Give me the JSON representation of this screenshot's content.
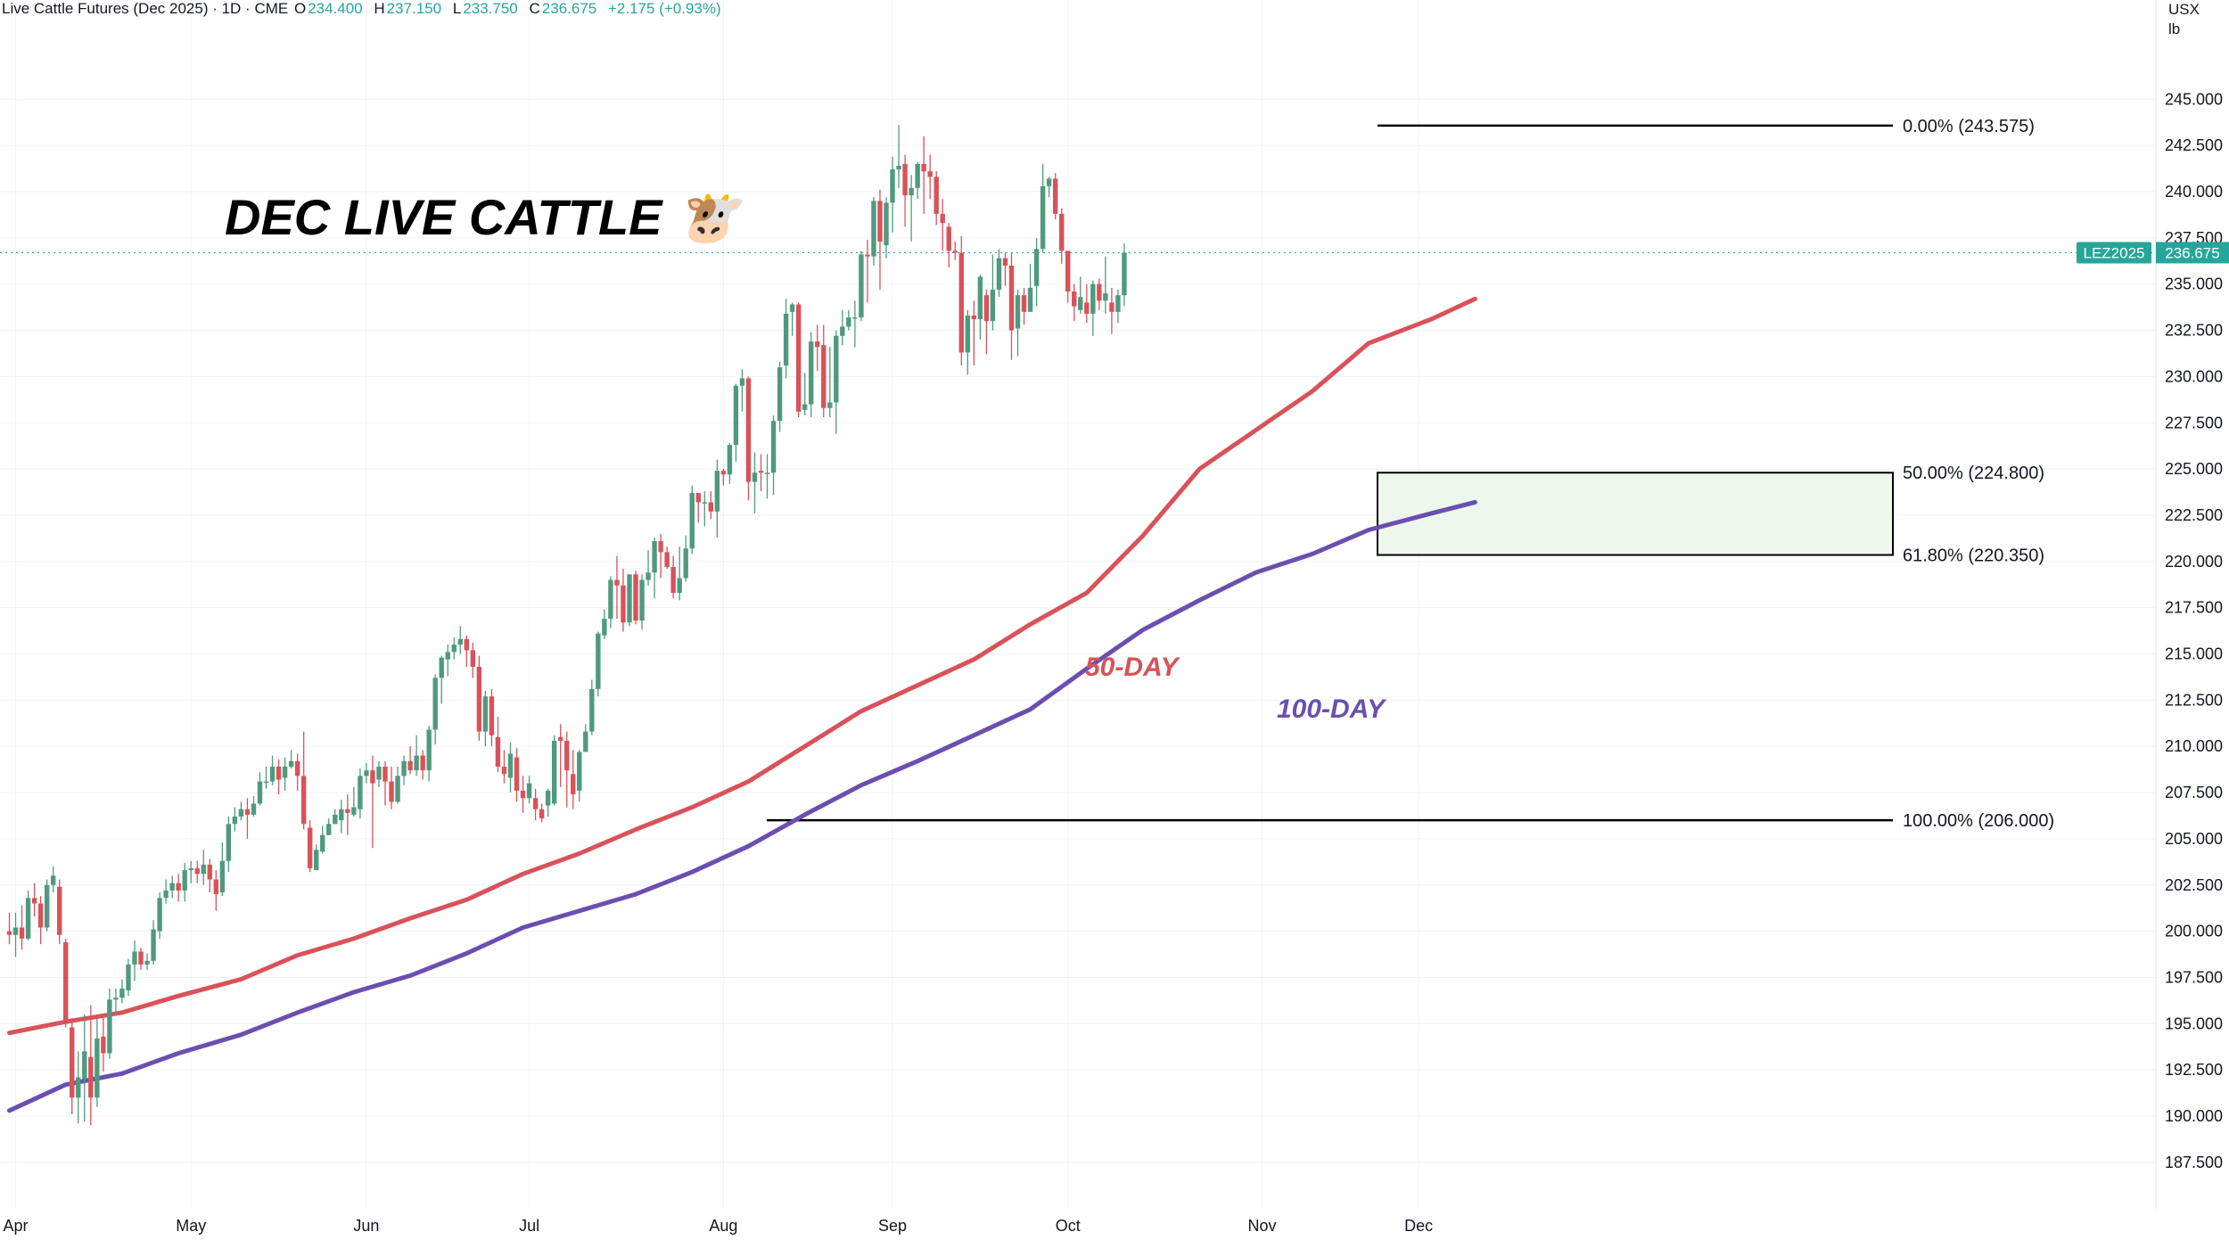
{
  "header": {
    "symbol": "Live Cattle Futures (Dec 2025) · 1D · CME",
    "open_label": "O",
    "open": "234.400",
    "high_label": "H",
    "high": "237.150",
    "low_label": "L",
    "low": "233.750",
    "close_label": "C",
    "close": "236.675",
    "change": "+2.175 (+0.93%)"
  },
  "currency": {
    "unit": "USX",
    "sub": "lb"
  },
  "price_tag": {
    "ticker": "LEZ2025",
    "price": "236.675"
  },
  "colors": {
    "up": "#4f9a7e",
    "down": "#d9525a",
    "ma50": "#d9525a",
    "ma100": "#6a4fb0",
    "zone": "#eef7ec"
  },
  "chart_data": {
    "type": "candlestick",
    "title": "DEC LIVE CATTLE 🐮",
    "y_axis": {
      "min": 185.6,
      "max": 248.6,
      "ticks": [
        "187.500",
        "190.000",
        "192.500",
        "195.000",
        "197.500",
        "200.000",
        "202.500",
        "205.000",
        "207.500",
        "210.000",
        "212.500",
        "215.000",
        "217.500",
        "220.000",
        "222.500",
        "225.000",
        "227.500",
        "230.000",
        "232.500",
        "235.000",
        "237.500",
        "240.000",
        "242.500",
        "245.000"
      ]
    },
    "x_axis": {
      "labels": [
        "Apr",
        "May",
        "Jun",
        "Jul",
        "Aug",
        "Sep",
        "Oct",
        "Nov",
        "Dec"
      ]
    },
    "candles": [
      [
        200.0,
        199.8,
        201.0,
        199.3
      ],
      [
        199.8,
        200.2,
        201.0,
        198.6
      ],
      [
        200.2,
        199.6,
        201.4,
        199.0
      ],
      [
        199.6,
        201.8,
        202.2,
        199.5
      ],
      [
        201.8,
        201.5,
        202.6,
        200.8
      ],
      [
        201.5,
        200.2,
        201.9,
        199.3
      ],
      [
        200.2,
        202.5,
        202.8,
        200.0
      ],
      [
        202.5,
        203.0,
        203.5,
        202.1
      ],
      [
        202.4,
        199.8,
        202.8,
        199.3
      ],
      [
        199.4,
        195.0,
        199.6,
        194.8
      ],
      [
        194.8,
        191.0,
        195.3,
        190.1
      ],
      [
        191.0,
        192.1,
        193.5,
        189.6
      ],
      [
        192.0,
        193.5,
        195.5,
        189.7
      ],
      [
        193.2,
        191.0,
        196.0,
        189.5
      ],
      [
        191.0,
        194.2,
        195.3,
        190.5
      ],
      [
        194.3,
        193.4,
        195.4,
        192.4
      ],
      [
        193.4,
        196.3,
        196.9,
        193.1
      ],
      [
        196.3,
        196.4,
        196.9,
        195.5
      ],
      [
        196.4,
        196.9,
        197.4,
        196.1
      ],
      [
        196.8,
        198.2,
        198.5,
        196.5
      ],
      [
        198.2,
        198.9,
        199.5,
        197.3
      ],
      [
        198.9,
        198.2,
        199.1,
        197.9
      ],
      [
        198.2,
        198.4,
        198.8,
        197.9
      ],
      [
        198.4,
        200.1,
        200.6,
        198.2
      ],
      [
        200.0,
        201.8,
        202.1,
        199.6
      ],
      [
        201.8,
        202.2,
        202.8,
        201.5
      ],
      [
        202.2,
        202.6,
        203.0,
        201.8
      ],
      [
        202.6,
        202.2,
        203.1,
        201.6
      ],
      [
        202.2,
        203.3,
        203.7,
        201.6
      ],
      [
        203.3,
        203.4,
        203.8,
        202.6
      ],
      [
        203.4,
        203.1,
        203.8,
        202.6
      ],
      [
        203.1,
        203.6,
        204.4,
        202.5
      ],
      [
        203.6,
        202.8,
        203.9,
        202.1
      ],
      [
        202.8,
        202.0,
        203.3,
        201.1
      ],
      [
        202.1,
        203.8,
        204.8,
        201.9
      ],
      [
        203.8,
        205.8,
        206.2,
        203.2
      ],
      [
        205.8,
        206.2,
        206.7,
        205.4
      ],
      [
        206.2,
        206.6,
        207.0,
        206.0
      ],
      [
        206.6,
        206.3,
        207.2,
        205.0
      ],
      [
        206.3,
        206.9,
        207.3,
        206.2
      ],
      [
        206.9,
        208.1,
        208.6,
        206.8
      ],
      [
        208.1,
        208.1,
        208.9,
        207.7
      ],
      [
        208.1,
        208.9,
        209.5,
        207.9
      ],
      [
        208.9,
        208.2,
        209.3,
        207.4
      ],
      [
        208.3,
        208.9,
        209.4,
        207.6
      ],
      [
        208.9,
        209.2,
        209.8,
        208.8
      ],
      [
        209.2,
        208.4,
        209.6,
        207.6
      ],
      [
        208.4,
        205.8,
        210.8,
        205.5
      ],
      [
        205.6,
        203.4,
        206.0,
        203.2
      ],
      [
        203.3,
        204.4,
        204.7,
        203.6
      ],
      [
        204.3,
        205.2,
        205.7,
        204.2
      ],
      [
        205.2,
        205.8,
        206.1,
        205.2
      ],
      [
        205.8,
        206.3,
        206.6,
        205.8
      ],
      [
        206.0,
        206.6,
        207.1,
        205.3
      ],
      [
        206.6,
        206.4,
        207.4,
        205.2
      ],
      [
        206.3,
        206.7,
        207.8,
        206.2
      ],
      [
        206.6,
        208.4,
        208.8,
        206.1
      ],
      [
        208.4,
        208.7,
        209.1,
        208.0
      ],
      [
        208.7,
        208.0,
        209.5,
        204.5
      ],
      [
        208.2,
        208.9,
        209.2,
        207.8
      ],
      [
        208.9,
        208.1,
        209.2,
        206.8
      ],
      [
        208.1,
        207.0,
        208.9,
        206.6
      ],
      [
        207.0,
        208.4,
        208.9,
        206.9
      ],
      [
        208.4,
        209.2,
        209.5,
        207.9
      ],
      [
        209.2,
        208.7,
        210.0,
        208.5
      ],
      [
        208.7,
        209.5,
        210.6,
        208.4
      ],
      [
        209.5,
        208.7,
        209.8,
        208.2
      ],
      [
        208.7,
        210.9,
        211.1,
        208.1
      ],
      [
        210.9,
        213.7,
        213.9,
        210.1
      ],
      [
        213.7,
        214.8,
        214.9,
        212.3
      ],
      [
        214.7,
        215.1,
        215.5,
        213.8
      ],
      [
        215.1,
        215.5,
        215.9,
        214.7
      ],
      [
        215.5,
        215.8,
        216.5,
        215.0
      ],
      [
        215.8,
        215.2,
        216.0,
        214.3
      ],
      [
        215.2,
        214.3,
        215.6,
        213.7
      ],
      [
        214.3,
        210.8,
        214.9,
        210.3
      ],
      [
        210.8,
        212.7,
        213.0,
        210.0
      ],
      [
        212.7,
        210.6,
        213.1,
        210.0
      ],
      [
        210.5,
        208.9,
        211.6,
        208.6
      ],
      [
        208.9,
        208.5,
        209.8,
        208.0
      ],
      [
        208.3,
        209.6,
        210.2,
        207.5
      ],
      [
        209.4,
        207.6,
        209.9,
        207.0
      ],
      [
        207.6,
        207.2,
        208.4,
        206.4
      ],
      [
        207.2,
        208.0,
        208.4,
        206.9
      ],
      [
        207.2,
        206.6,
        207.7,
        206.0
      ],
      [
        206.6,
        206.1,
        206.9,
        205.9
      ],
      [
        206.8,
        207.6,
        207.7,
        206.2
      ],
      [
        206.9,
        210.3,
        210.6,
        206.8
      ],
      [
        210.5,
        210.3,
        211.2,
        207.8
      ],
      [
        210.3,
        208.7,
        210.8,
        206.7
      ],
      [
        208.5,
        207.4,
        209.8,
        206.6
      ],
      [
        207.6,
        209.7,
        209.8,
        207.0
      ],
      [
        209.7,
        210.8,
        211.2,
        209.7
      ],
      [
        210.8,
        213.1,
        213.6,
        210.6
      ],
      [
        213.1,
        216.1,
        216.2,
        212.7
      ],
      [
        216.0,
        216.9,
        217.4,
        215.8
      ],
      [
        216.9,
        219.0,
        219.2,
        216.4
      ],
      [
        219.0,
        218.7,
        220.3,
        216.9
      ],
      [
        218.7,
        216.7,
        219.6,
        216.2
      ],
      [
        216.7,
        219.3,
        219.3,
        216.5
      ],
      [
        219.3,
        216.8,
        219.5,
        216.6
      ],
      [
        216.8,
        219.0,
        219.3,
        216.3
      ],
      [
        219.0,
        219.4,
        220.6,
        218.7
      ],
      [
        219.4,
        221.1,
        221.3,
        218.0
      ],
      [
        221.1,
        220.5,
        221.5,
        219.1
      ],
      [
        220.5,
        219.7,
        220.8,
        219.6
      ],
      [
        219.7,
        218.3,
        220.3,
        218.0
      ],
      [
        218.3,
        219.1,
        220.8,
        217.9
      ],
      [
        219.1,
        220.7,
        221.4,
        218.9
      ],
      [
        220.7,
        223.7,
        224.1,
        220.4
      ],
      [
        223.7,
        223.2,
        223.7,
        222.1
      ],
      [
        223.2,
        223.2,
        223.8,
        221.9
      ],
      [
        223.2,
        222.7,
        223.8,
        222.3
      ],
      [
        222.7,
        224.9,
        225.5,
        221.3
      ],
      [
        224.9,
        224.7,
        225.0,
        224.1
      ],
      [
        224.7,
        226.3,
        226.4,
        224.2
      ],
      [
        226.3,
        229.5,
        229.6,
        225.4
      ],
      [
        229.5,
        229.9,
        230.4,
        228.1
      ],
      [
        229.9,
        224.3,
        230.0,
        223.3
      ],
      [
        224.3,
        224.8,
        225.9,
        222.6
      ],
      [
        224.9,
        224.8,
        225.8,
        223.8
      ],
      [
        224.8,
        224.8,
        225.8,
        223.4
      ],
      [
        224.8,
        227.6,
        227.9,
        223.6
      ],
      [
        227.6,
        230.5,
        230.8,
        227.0
      ],
      [
        230.6,
        233.4,
        234.2,
        229.9
      ],
      [
        233.5,
        233.9,
        234.0,
        232.2
      ],
      [
        233.9,
        228.1,
        234.0,
        227.8
      ],
      [
        228.2,
        228.5,
        230.2,
        227.9
      ],
      [
        228.5,
        231.9,
        232.4,
        227.8
      ],
      [
        231.9,
        231.6,
        232.8,
        230.3
      ],
      [
        231.7,
        228.3,
        232.8,
        227.8
      ],
      [
        228.3,
        228.6,
        231.6,
        227.8
      ],
      [
        228.6,
        232.2,
        232.5,
        226.9
      ],
      [
        232.2,
        232.7,
        233.6,
        231.7
      ],
      [
        232.7,
        233.2,
        233.6,
        232.5
      ],
      [
        233.2,
        233.2,
        234.1,
        231.6
      ],
      [
        233.2,
        236.6,
        236.8,
        233.0
      ],
      [
        236.6,
        236.5,
        237.4,
        234.0
      ],
      [
        236.5,
        239.5,
        239.7,
        236.0
      ],
      [
        239.5,
        237.3,
        240.1,
        234.7
      ],
      [
        237.1,
        239.4,
        239.7,
        236.4
      ],
      [
        239.4,
        241.2,
        241.9,
        237.8
      ],
      [
        241.2,
        241.4,
        243.6,
        240.2
      ],
      [
        241.5,
        239.8,
        242.0,
        238.1
      ],
      [
        239.8,
        240.2,
        240.9,
        237.3
      ],
      [
        240.2,
        241.5,
        241.6,
        239.6
      ],
      [
        241.5,
        241.1,
        243.0,
        238.8
      ],
      [
        241.1,
        240.8,
        242.0,
        239.6
      ],
      [
        240.8,
        238.8,
        241.1,
        238.2
      ],
      [
        238.8,
        238.3,
        239.6,
        236.8
      ],
      [
        238.1,
        236.8,
        238.3,
        235.9
      ],
      [
        236.8,
        236.7,
        237.3,
        236.3
      ],
      [
        236.7,
        231.3,
        237.6,
        230.6
      ],
      [
        231.3,
        233.3,
        233.6,
        230.1
      ],
      [
        233.3,
        233.1,
        234.1,
        230.6
      ],
      [
        233.1,
        235.4,
        235.5,
        232.0
      ],
      [
        234.4,
        233.0,
        234.7,
        231.2
      ],
      [
        233.0,
        234.7,
        236.6,
        232.5
      ],
      [
        234.7,
        236.4,
        236.9,
        234.3
      ],
      [
        236.4,
        236.0,
        236.7,
        234.9
      ],
      [
        236.0,
        232.5,
        236.7,
        230.9
      ],
      [
        232.6,
        234.4,
        234.7,
        231.1
      ],
      [
        234.4,
        233.5,
        234.8,
        232.8
      ],
      [
        233.5,
        234.8,
        236.1,
        233.6
      ],
      [
        234.9,
        236.9,
        237.5,
        233.8
      ],
      [
        236.9,
        240.3,
        241.5,
        236.7
      ],
      [
        240.3,
        240.7,
        240.8,
        239.7
      ],
      [
        240.7,
        238.8,
        241.0,
        238.5
      ],
      [
        238.8,
        236.8,
        239.1,
        236.1
      ],
      [
        236.8,
        234.6,
        236.8,
        234.0
      ],
      [
        234.6,
        233.8,
        235.0,
        233.0
      ],
      [
        233.6,
        234.3,
        235.4,
        233.4
      ],
      [
        234.0,
        233.4,
        235.0,
        232.9
      ],
      [
        233.4,
        235.0,
        235.2,
        232.2
      ],
      [
        235.0,
        234.1,
        235.3,
        233.6
      ],
      [
        234.1,
        234.5,
        236.5,
        233.4
      ],
      [
        234.0,
        233.5,
        234.8,
        232.3
      ],
      [
        233.5,
        234.4,
        234.7,
        232.9
      ],
      [
        234.4,
        236.7,
        237.2,
        233.8
      ]
    ],
    "ma50": [
      [
        0,
        194.5
      ],
      [
        9,
        195.1
      ],
      [
        18,
        195.6
      ],
      [
        27,
        196.5
      ],
      [
        37,
        197.4
      ],
      [
        46,
        198.7
      ],
      [
        55,
        199.6
      ],
      [
        64,
        200.7
      ],
      [
        73,
        201.7
      ],
      [
        82,
        203.1
      ],
      [
        91,
        204.2
      ],
      [
        100,
        205.5
      ],
      [
        109,
        206.7
      ],
      [
        118,
        208.1
      ],
      [
        127,
        210.0
      ],
      [
        136,
        211.9
      ],
      [
        145,
        213.3
      ],
      [
        154,
        214.7
      ],
      [
        163,
        216.6
      ],
      [
        172,
        218.3
      ],
      [
        181,
        221.4
      ],
      [
        190,
        225.0
      ],
      [
        199,
        227.1
      ],
      [
        208,
        229.2
      ],
      [
        217,
        231.8
      ],
      [
        227,
        233.1
      ],
      [
        234,
        234.2
      ]
    ],
    "ma100": [
      [
        0,
        190.3
      ],
      [
        9,
        191.7
      ],
      [
        18,
        192.3
      ],
      [
        27,
        193.4
      ],
      [
        37,
        194.4
      ],
      [
        46,
        195.6
      ],
      [
        55,
        196.7
      ],
      [
        64,
        197.6
      ],
      [
        73,
        198.8
      ],
      [
        82,
        200.2
      ],
      [
        91,
        201.1
      ],
      [
        100,
        202.0
      ],
      [
        109,
        203.2
      ],
      [
        118,
        204.6
      ],
      [
        127,
        206.3
      ],
      [
        136,
        207.9
      ],
      [
        145,
        209.2
      ],
      [
        154,
        210.6
      ],
      [
        163,
        212.0
      ],
      [
        172,
        214.2
      ],
      [
        181,
        216.3
      ],
      [
        190,
        217.9
      ],
      [
        199,
        219.4
      ],
      [
        208,
        220.4
      ],
      [
        217,
        221.7
      ],
      [
        227,
        222.6
      ],
      [
        234,
        223.2
      ]
    ],
    "annotations": {
      "ma50_label": "50-DAY",
      "ma100_label": "100-DAY",
      "fib_0": "0.00% (243.575)",
      "fib_50": "50.00% (224.800)",
      "fib_618": "61.80% (220.350)",
      "fib_100": "100.00% (206.000)"
    },
    "fib_levels": [
      243.575,
      224.8,
      220.35,
      206.0
    ]
  }
}
